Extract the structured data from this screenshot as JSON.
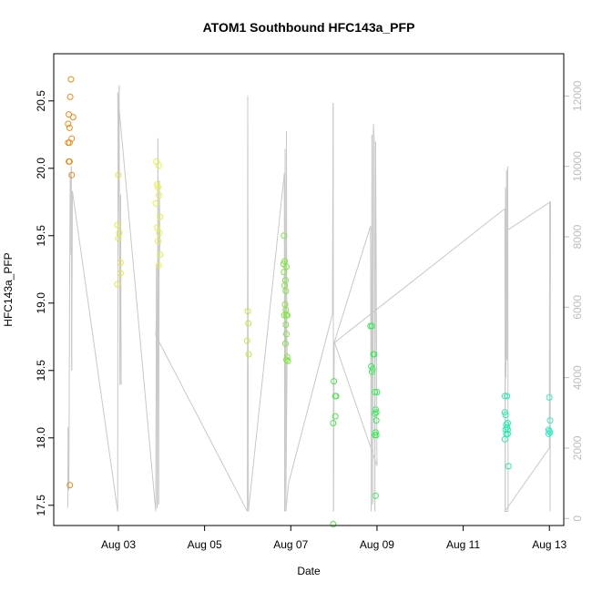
{
  "chart_data": {
    "type": "scatter",
    "title": "ATOM1 Southbound HFC143a_PFP",
    "xlabel": "Date",
    "ylabel": "HFC143a_PFP",
    "xlim": [
      "2016-08-01T12:00",
      "2016-08-13T08:00"
    ],
    "ylim": [
      17.35,
      20.85
    ],
    "y2lim": [
      -200,
      13200
    ],
    "x_ticks": [
      {
        "date": "2016-08-03",
        "label": "Aug 03"
      },
      {
        "date": "2016-08-05",
        "label": "Aug 05"
      },
      {
        "date": "2016-08-07",
        "label": "Aug 07"
      },
      {
        "date": "2016-08-09",
        "label": "Aug 09"
      },
      {
        "date": "2016-08-11",
        "label": "Aug 11"
      },
      {
        "date": "2016-08-13",
        "label": "Aug 13"
      }
    ],
    "y_ticks": [
      17.5,
      18.0,
      18.5,
      19.0,
      19.5,
      20.0,
      20.5
    ],
    "y_tick_labels": [
      "17.5",
      "18.0",
      "18.5",
      "19.0",
      "19.5",
      "20.0",
      "20.5"
    ],
    "y2_ticks": [
      0,
      2000,
      4000,
      6000,
      8000,
      10000,
      12000
    ],
    "y2_tick_labels": [
      "0",
      "2000",
      "4000",
      "6000",
      "8000",
      "10000",
      "12000"
    ],
    "colors": {
      "line": "#c8c8c8",
      "frame": "#000000",
      "right_axis": "#bdbdbd"
    },
    "points": [
      {
        "x": "2016-08-01T21:36",
        "y": 20.66,
        "color": "#f08a1c"
      },
      {
        "x": "2016-08-01T21:12",
        "y": 20.53,
        "color": "#f08a1c"
      },
      {
        "x": "2016-08-01T20:24",
        "y": 20.4,
        "color": "#f08a1c"
      },
      {
        "x": "2016-08-01T22:48",
        "y": 20.38,
        "color": "#f08a1c"
      },
      {
        "x": "2016-08-01T20:00",
        "y": 20.33,
        "color": "#f08a1c"
      },
      {
        "x": "2016-08-01T20:48",
        "y": 20.3,
        "color": "#f08a1c"
      },
      {
        "x": "2016-08-01T22:00",
        "y": 20.22,
        "color": "#f08a1c"
      },
      {
        "x": "2016-08-01T20:00",
        "y": 20.19,
        "color": "#f08a1c"
      },
      {
        "x": "2016-08-01T20:48",
        "y": 20.19,
        "color": "#f08a1c"
      },
      {
        "x": "2016-08-01T20:24",
        "y": 20.05,
        "color": "#f08a1c"
      },
      {
        "x": "2016-08-01T20:48",
        "y": 20.05,
        "color": "#f08a1c"
      },
      {
        "x": "2016-08-01T22:00",
        "y": 19.95,
        "color": "#f08a1c"
      },
      {
        "x": "2016-08-01T21:00",
        "y": 17.65,
        "color": "#f08a1c"
      },
      {
        "x": "2016-08-03T00:00",
        "y": 19.95,
        "color": "#e8e83a"
      },
      {
        "x": "2016-08-02T23:30",
        "y": 19.58,
        "color": "#e8e83a"
      },
      {
        "x": "2016-08-03T00:30",
        "y": 19.52,
        "color": "#e8e83a"
      },
      {
        "x": "2016-08-03T00:00",
        "y": 19.48,
        "color": "#e8e83a"
      },
      {
        "x": "2016-08-03T01:12",
        "y": 19.3,
        "color": "#e8e83a"
      },
      {
        "x": "2016-08-03T01:12",
        "y": 19.22,
        "color": "#e8e83a"
      },
      {
        "x": "2016-08-02T23:30",
        "y": 19.14,
        "color": "#e8e83a"
      },
      {
        "x": "2016-08-03T21:12",
        "y": 20.05,
        "color": "#e8f040"
      },
      {
        "x": "2016-08-03T22:30",
        "y": 20.02,
        "color": "#e8f040"
      },
      {
        "x": "2016-08-03T21:36",
        "y": 19.88,
        "color": "#e8f040"
      },
      {
        "x": "2016-08-03T22:00",
        "y": 19.86,
        "color": "#e8f040"
      },
      {
        "x": "2016-08-03T22:30",
        "y": 19.8,
        "color": "#e8f040"
      },
      {
        "x": "2016-08-03T20:48",
        "y": 19.74,
        "color": "#e8f040"
      },
      {
        "x": "2016-08-03T23:12",
        "y": 19.64,
        "color": "#e8f040"
      },
      {
        "x": "2016-08-03T21:36",
        "y": 19.56,
        "color": "#e8f040"
      },
      {
        "x": "2016-08-03T22:48",
        "y": 19.52,
        "color": "#e8f040"
      },
      {
        "x": "2016-08-03T22:00",
        "y": 19.46,
        "color": "#e8f040"
      },
      {
        "x": "2016-08-03T23:12",
        "y": 19.36,
        "color": "#e8f040"
      },
      {
        "x": "2016-08-03T22:30",
        "y": 19.28,
        "color": "#e8f040"
      },
      {
        "x": "2016-08-06T00:00",
        "y": 18.94,
        "color": "#b8ee3a"
      },
      {
        "x": "2016-08-06T00:24",
        "y": 18.85,
        "color": "#b8ee3a"
      },
      {
        "x": "2016-08-05T23:36",
        "y": 18.72,
        "color": "#b8ee3a"
      },
      {
        "x": "2016-08-06T00:36",
        "y": 18.62,
        "color": "#b8ee3a"
      },
      {
        "x": "2016-08-06T20:12",
        "y": 19.5,
        "color": "#7ee640"
      },
      {
        "x": "2016-08-06T20:36",
        "y": 19.31,
        "color": "#7ee640"
      },
      {
        "x": "2016-08-06T20:00",
        "y": 19.29,
        "color": "#7ee640"
      },
      {
        "x": "2016-08-06T21:36",
        "y": 19.27,
        "color": "#7ee640"
      },
      {
        "x": "2016-08-06T20:12",
        "y": 19.23,
        "color": "#7ee640"
      },
      {
        "x": "2016-08-06T21:00",
        "y": 19.17,
        "color": "#7ee640"
      },
      {
        "x": "2016-08-06T20:36",
        "y": 19.13,
        "color": "#7ee640"
      },
      {
        "x": "2016-08-06T21:12",
        "y": 19.09,
        "color": "#7ee640"
      },
      {
        "x": "2016-08-06T20:48",
        "y": 18.99,
        "color": "#7ee640"
      },
      {
        "x": "2016-08-06T21:12",
        "y": 18.95,
        "color": "#7ee640"
      },
      {
        "x": "2016-08-06T21:36",
        "y": 18.91,
        "color": "#7ee640"
      },
      {
        "x": "2016-08-06T20:24",
        "y": 18.91,
        "color": "#7ee640"
      },
      {
        "x": "2016-08-06T22:00",
        "y": 18.91,
        "color": "#7ee640"
      },
      {
        "x": "2016-08-06T21:12",
        "y": 18.84,
        "color": "#7ee640"
      },
      {
        "x": "2016-08-06T21:36",
        "y": 18.77,
        "color": "#7ee640"
      },
      {
        "x": "2016-08-06T21:00",
        "y": 18.7,
        "color": "#7ee640"
      },
      {
        "x": "2016-08-06T22:00",
        "y": 18.6,
        "color": "#7ee640"
      },
      {
        "x": "2016-08-06T21:36",
        "y": 18.58,
        "color": "#7ee640"
      },
      {
        "x": "2016-08-06T22:24",
        "y": 18.57,
        "color": "#7ee640"
      },
      {
        "x": "2016-08-08T00:00",
        "y": 18.42,
        "color": "#4ee44e"
      },
      {
        "x": "2016-08-08T00:48",
        "y": 18.31,
        "color": "#4ee44e"
      },
      {
        "x": "2016-08-08T01:12",
        "y": 18.31,
        "color": "#4ee44e"
      },
      {
        "x": "2016-08-08T00:48",
        "y": 18.16,
        "color": "#4ee44e"
      },
      {
        "x": "2016-08-07T23:36",
        "y": 18.11,
        "color": "#4ee44e"
      },
      {
        "x": "2016-08-07T23:36",
        "y": 17.36,
        "color": "#4ee44e"
      },
      {
        "x": "2016-08-08T20:24",
        "y": 18.83,
        "color": "#3ee85a"
      },
      {
        "x": "2016-08-08T21:12",
        "y": 18.83,
        "color": "#3ee85a"
      },
      {
        "x": "2016-08-08T22:00",
        "y": 18.62,
        "color": "#3ee85a"
      },
      {
        "x": "2016-08-08T22:24",
        "y": 18.62,
        "color": "#3ee85a"
      },
      {
        "x": "2016-08-08T20:48",
        "y": 18.53,
        "color": "#3ee85a"
      },
      {
        "x": "2016-08-08T21:36",
        "y": 18.51,
        "color": "#3ee85a"
      },
      {
        "x": "2016-08-08T21:12",
        "y": 18.49,
        "color": "#3ee85a"
      },
      {
        "x": "2016-08-08T22:48",
        "y": 18.34,
        "color": "#3ee85a"
      },
      {
        "x": "2016-08-09T00:00",
        "y": 18.34,
        "color": "#3ee85a"
      },
      {
        "x": "2016-08-08T23:12",
        "y": 18.21,
        "color": "#3ee85a"
      },
      {
        "x": "2016-08-08T23:36",
        "y": 18.19,
        "color": "#3ee85a"
      },
      {
        "x": "2016-08-08T22:48",
        "y": 18.18,
        "color": "#3ee85a"
      },
      {
        "x": "2016-08-08T23:36",
        "y": 18.13,
        "color": "#3ee85a"
      },
      {
        "x": "2016-08-08T23:12",
        "y": 18.04,
        "color": "#3ee85a"
      },
      {
        "x": "2016-08-08T22:48",
        "y": 18.02,
        "color": "#3ee85a"
      },
      {
        "x": "2016-08-08T23:36",
        "y": 18.02,
        "color": "#3ee85a"
      },
      {
        "x": "2016-08-08T23:12",
        "y": 17.57,
        "color": "#3ee85a"
      },
      {
        "x": "2016-08-11T23:12",
        "y": 18.31,
        "color": "#2ee8b0"
      },
      {
        "x": "2016-08-12T00:24",
        "y": 18.31,
        "color": "#2ee8b0"
      },
      {
        "x": "2016-08-11T23:12",
        "y": 18.19,
        "color": "#2ee8b0"
      },
      {
        "x": "2016-08-11T23:36",
        "y": 18.17,
        "color": "#2ee8b0"
      },
      {
        "x": "2016-08-12T00:48",
        "y": 18.11,
        "color": "#2ee8b0"
      },
      {
        "x": "2016-08-12T00:00",
        "y": 18.1,
        "color": "#2ee8b0"
      },
      {
        "x": "2016-08-12T00:24",
        "y": 18.08,
        "color": "#2ee8b0"
      },
      {
        "x": "2016-08-11T23:36",
        "y": 18.06,
        "color": "#2ee8b0"
      },
      {
        "x": "2016-08-12T00:48",
        "y": 18.06,
        "color": "#2ee8b0"
      },
      {
        "x": "2016-08-12T00:00",
        "y": 18.03,
        "color": "#2ee8b0"
      },
      {
        "x": "2016-08-12T00:48",
        "y": 18.03,
        "color": "#2ee8b0"
      },
      {
        "x": "2016-08-11T23:12",
        "y": 17.99,
        "color": "#2ee8b0"
      },
      {
        "x": "2016-08-12T01:12",
        "y": 17.79,
        "color": "#2ee8b0"
      },
      {
        "x": "2016-08-13T00:00",
        "y": 18.3,
        "color": "#3ee8c4"
      },
      {
        "x": "2016-08-13T00:24",
        "y": 18.13,
        "color": "#3ee8c4"
      },
      {
        "x": "2016-08-12T23:36",
        "y": 18.06,
        "color": "#3ee8c4"
      },
      {
        "x": "2016-08-13T00:00",
        "y": 18.05,
        "color": "#3ee8c4"
      },
      {
        "x": "2016-08-12T23:36",
        "y": 18.03,
        "color": "#3ee8c4"
      },
      {
        "x": "2016-08-13T00:24",
        "y": 18.04,
        "color": "#3ee8c4"
      }
    ],
    "line_series": {
      "axis": "right",
      "points": [
        [
          "2016-08-01T19:48",
          300
        ],
        [
          "2016-08-01T20:00",
          2600
        ],
        [
          "2016-08-01T20:24",
          800
        ],
        [
          "2016-08-01T20:48",
          6200
        ],
        [
          "2016-08-01T21:12",
          9800
        ],
        [
          "2016-08-01T21:36",
          7500
        ],
        [
          "2016-08-01T21:48",
          10000
        ],
        [
          "2016-08-01T22:00",
          4200
        ],
        [
          "2016-08-01T22:24",
          9300
        ],
        [
          "2016-08-02T23:36",
          200
        ],
        [
          "2016-08-02T23:48",
          11800
        ],
        [
          "2016-08-03T00:00",
          10000
        ],
        [
          "2016-08-03T00:24",
          12300
        ],
        [
          "2016-08-03T00:48",
          3800
        ],
        [
          "2016-08-03T01:12",
          9200
        ],
        [
          "2016-08-03T01:36",
          3800
        ],
        [
          "2016-08-02T23:36",
          12100
        ],
        [
          "2016-08-03T20:48",
          200
        ],
        [
          "2016-08-03T21:12",
          7200
        ],
        [
          "2016-08-03T21:36",
          300
        ],
        [
          "2016-08-03T22:00",
          10800
        ],
        [
          "2016-08-03T22:24",
          400
        ],
        [
          "2016-08-03T22:48",
          9600
        ],
        [
          "2016-08-03T23:12",
          7800
        ],
        [
          "2016-08-03T20:48",
          5200
        ],
        [
          "2016-08-05T23:48",
          200
        ],
        [
          "2016-08-06T00:00",
          12000
        ],
        [
          "2016-08-06T00:24",
          200
        ],
        [
          "2016-08-06T20:24",
          9800
        ],
        [
          "2016-08-06T20:36",
          200
        ],
        [
          "2016-08-06T20:48",
          10500
        ],
        [
          "2016-08-06T21:12",
          800
        ],
        [
          "2016-08-06T21:36",
          11000
        ],
        [
          "2016-08-06T21:48",
          5200
        ],
        [
          "2016-08-06T22:00",
          4800
        ],
        [
          "2016-08-06T21:12",
          200
        ],
        [
          "2016-08-06T22:48",
          1000
        ],
        [
          "2016-08-07T23:12",
          5800
        ],
        [
          "2016-08-07T23:36",
          11800
        ],
        [
          "2016-08-07T23:48",
          200
        ],
        [
          "2016-08-08T00:12",
          5000
        ],
        [
          "2016-08-08T20:24",
          8300
        ],
        [
          "2016-08-08T20:48",
          200
        ],
        [
          "2016-08-08T21:12",
          10900
        ],
        [
          "2016-08-08T21:36",
          400
        ],
        [
          "2016-08-08T22:00",
          11200
        ],
        [
          "2016-08-08T22:24",
          10800
        ],
        [
          "2016-08-08T22:48",
          200
        ],
        [
          "2016-08-08T23:12",
          10700
        ],
        [
          "2016-08-08T23:36",
          7000
        ],
        [
          "2016-08-09T00:00",
          1500
        ],
        [
          "2016-08-08T00:24",
          5000
        ],
        [
          "2016-08-11T23:12",
          8800
        ],
        [
          "2016-08-11T23:24",
          200
        ],
        [
          "2016-08-11T23:36",
          9400
        ],
        [
          "2016-08-11T23:48",
          4000
        ],
        [
          "2016-08-12T00:12",
          9900
        ],
        [
          "2016-08-12T00:24",
          4500
        ],
        [
          "2016-08-12T00:48",
          10000
        ],
        [
          "2016-08-12T01:00",
          200
        ],
        [
          "2016-08-11T23:12",
          200
        ],
        [
          "2016-08-13T00:00",
          2000
        ],
        [
          "2016-08-13T00:12",
          9000
        ],
        [
          "2016-08-13T00:24",
          200
        ],
        [
          "2016-08-13T00:36",
          9000
        ],
        [
          "2016-08-12T01:00",
          8200
        ]
      ]
    }
  }
}
